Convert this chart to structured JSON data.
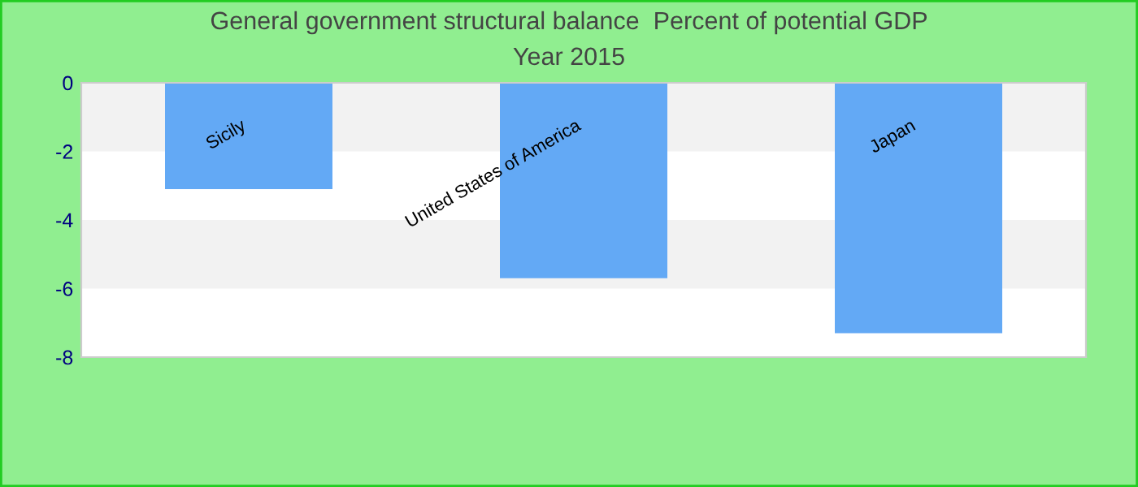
{
  "chart_data": {
    "type": "bar",
    "title": "General government structural balance  Percent of potential GDP",
    "subtitle": "Year 2015",
    "categories": [
      "Sicily",
      "United States of America",
      "Japan"
    ],
    "values": [
      -3.1,
      -5.7,
      -7.3
    ],
    "color": "#63a9f5",
    "ylim": [
      -8,
      0
    ],
    "yticks": [
      0,
      -2,
      -4,
      -6,
      -8
    ]
  }
}
